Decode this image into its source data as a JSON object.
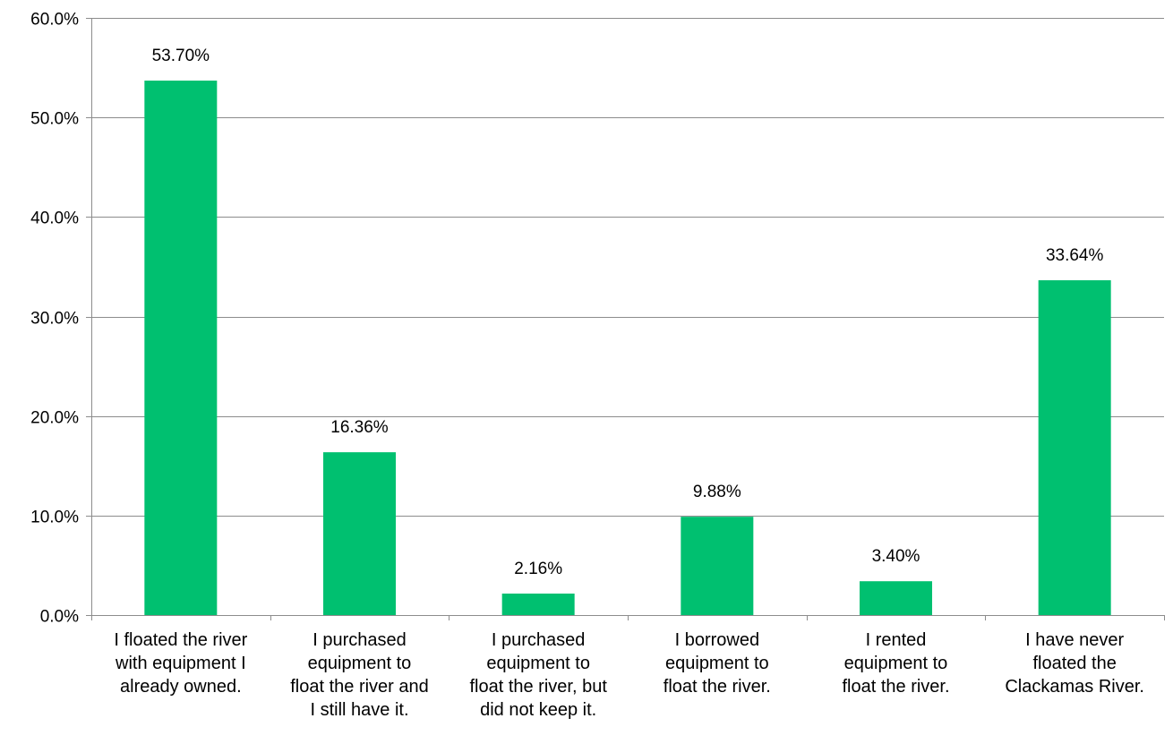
{
  "chart_data": {
    "type": "bar",
    "title": "",
    "xlabel": "",
    "ylabel": "",
    "categories": [
      [
        "I floated the river",
        "with equipment I",
        "already owned."
      ],
      [
        "I purchased",
        "equipment to",
        "float the river and",
        "I still have it."
      ],
      [
        "I purchased",
        "equipment to",
        "float the river, but",
        "did not keep it."
      ],
      [
        "I borrowed",
        "equipment to",
        "float the river."
      ],
      [
        "I rented",
        "equipment to",
        "float the river."
      ],
      [
        "I have never",
        "floated the",
        "Clackamas River."
      ]
    ],
    "values": [
      53.7,
      16.36,
      2.16,
      9.88,
      3.4,
      33.64
    ],
    "data_labels": [
      "53.70%",
      "16.36%",
      "2.16%",
      "9.88%",
      "3.40%",
      "33.64%"
    ],
    "ylim": [
      0,
      60
    ],
    "yticks": [
      0,
      10,
      20,
      30,
      40,
      50,
      60
    ],
    "ytick_labels": [
      "0.0%",
      "10.0%",
      "20.0%",
      "30.0%",
      "40.0%",
      "50.0%",
      "60.0%"
    ],
    "grid": true,
    "legend": "none",
    "colors": {
      "bar": "#00C070",
      "grid": "#8c8c8c",
      "axis": "#8c8c8c",
      "text": "#000000"
    }
  }
}
